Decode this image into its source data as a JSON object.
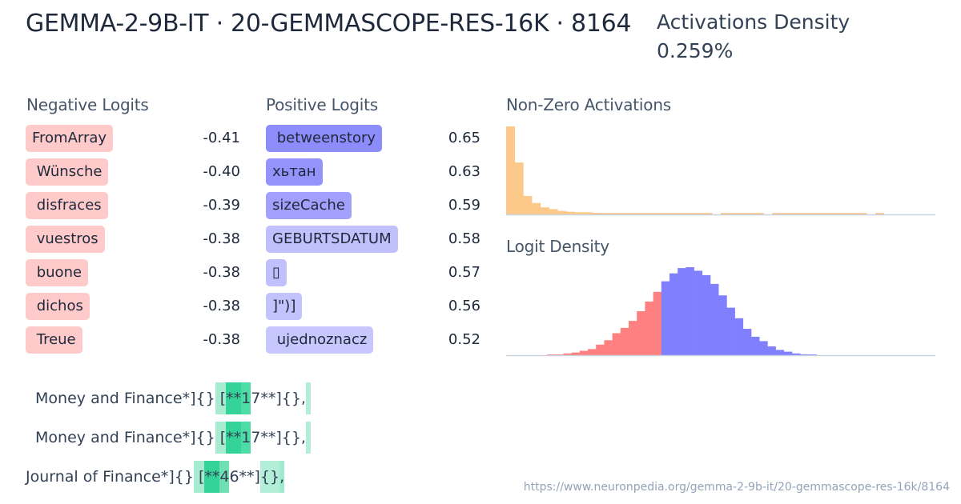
{
  "header": {
    "title": "GEMMA-2-9B-IT · 20-GEMMASCOPE-RES-16K · 8164",
    "density_label": "Activations Density",
    "density_value": "0.259%"
  },
  "negative_logits": {
    "label": "Negative Logits",
    "color": "#fecaca",
    "items": [
      {
        "token": "FromArray",
        "value": "-0.41"
      },
      {
        "token": " Wünsche",
        "value": "-0.40"
      },
      {
        "token": " disfraces",
        "value": "-0.39"
      },
      {
        "token": " vuestros",
        "value": "-0.38"
      },
      {
        "token": " buone",
        "value": "-0.38"
      },
      {
        "token": " dichos",
        "value": "-0.38"
      },
      {
        "token": " Treue",
        "value": "-0.38"
      }
    ]
  },
  "positive_logits": {
    "label": "Positive Logits",
    "items": [
      {
        "token": " betweenstory",
        "value": "0.65",
        "color": "#8c8cfb"
      },
      {
        "token": "хьтан",
        "value": "0.63",
        "color": "#9393fb"
      },
      {
        "token": "sizeCache",
        "value": "0.59",
        "color": "#a1a1fb"
      },
      {
        "token": "GEBURTSDATUM",
        "value": "0.58",
        "color": "#c0c0fc"
      },
      {
        "token": "▯",
        "value": "0.57",
        "color": "#c0c0fc"
      },
      {
        "token": "]\")]",
        "value": "0.56",
        "color": "#c2c2fc"
      },
      {
        "token": " ujednoznacz",
        "value": "0.52",
        "color": "#c7c7fd"
      }
    ]
  },
  "charts": {
    "activations_label": "Non-Zero Activations",
    "logit_label": "Logit Density"
  },
  "chart_data": [
    {
      "type": "bar",
      "title": "Non-Zero Activations",
      "xlabel": "",
      "ylabel": "",
      "color": "#fdc98a",
      "values": [
        100,
        59,
        21,
        13,
        8,
        6,
        4,
        3,
        2.5,
        2.5,
        1.5,
        1.2,
        1.2,
        1,
        1,
        1,
        0.8,
        0.8,
        0.6,
        0.6,
        0.6,
        0.5,
        0.5,
        0.4,
        0,
        0.4,
        0.4,
        0.4,
        0.4,
        0.4,
        0,
        0.4,
        0.4,
        0.4,
        0.4,
        0.4,
        0.4,
        0.4,
        0.4,
        0.4,
        0.4,
        0.4,
        0,
        0.4,
        0,
        0,
        0,
        0,
        0,
        0
      ],
      "grid": false
    },
    {
      "type": "bar",
      "title": "Logit Density",
      "xlabel": "",
      "ylabel": "",
      "negative_color": "#ff8080",
      "positive_color": "#8080ff",
      "negative_values": [
        0,
        0,
        0,
        0,
        0,
        0.5,
        0.5,
        2,
        3,
        5,
        7,
        12,
        17,
        25,
        31,
        39,
        50,
        61,
        72
      ],
      "positive_values": [
        84,
        93,
        99,
        100,
        96,
        91,
        81,
        68,
        54,
        42,
        30,
        21,
        16,
        10,
        6,
        4,
        2,
        1,
        0.3
      ],
      "grid": false
    }
  ],
  "examples": [
    {
      "tokens": [
        {
          "text": " Money",
          "bg": ""
        },
        {
          "text": " and",
          "bg": ""
        },
        {
          "text": " Finance",
          "bg": ""
        },
        {
          "text": "*]{}",
          "bg": ""
        },
        {
          "text": " [",
          "bg": "#a7ecd1"
        },
        {
          "text": "**",
          "bg": "#34d399"
        },
        {
          "text": "1",
          "bg": "#4ddba6"
        },
        {
          "text": "7",
          "bg": ""
        },
        {
          "text": "**]{},",
          "bg": ""
        },
        {
          "text": " ",
          "bg": "#b3efd8"
        }
      ]
    },
    {
      "tokens": [
        {
          "text": " Money",
          "bg": ""
        },
        {
          "text": " and",
          "bg": ""
        },
        {
          "text": " Finance",
          "bg": ""
        },
        {
          "text": "*]{}",
          "bg": ""
        },
        {
          "text": " [",
          "bg": "#a7ecd1"
        },
        {
          "text": "**",
          "bg": "#34d399"
        },
        {
          "text": "1",
          "bg": "#4ddba6"
        },
        {
          "text": "7",
          "bg": ""
        },
        {
          "text": "**]{},",
          "bg": ""
        },
        {
          "text": " ",
          "bg": "#b3efd8"
        }
      ]
    },
    {
      "tokens": [
        {
          "text": "Journal",
          "bg": ""
        },
        {
          "text": " of",
          "bg": ""
        },
        {
          "text": " Finance",
          "bg": ""
        },
        {
          "text": "*]{}",
          "bg": ""
        },
        {
          "text": " [",
          "bg": "#a7ecd1"
        },
        {
          "text": "**",
          "bg": "#34d399"
        },
        {
          "text": "4",
          "bg": "#6ee0b4"
        },
        {
          "text": "6**]",
          "bg": ""
        },
        {
          "text": "{}",
          "bg": "#b3efd8"
        },
        {
          "text": ",",
          "bg": "#a0ead0"
        }
      ]
    }
  ],
  "footer": {
    "url": "https://www.neuronpedia.org/gemma-2-9b-it/20-gemmascope-res-16k/8164"
  }
}
